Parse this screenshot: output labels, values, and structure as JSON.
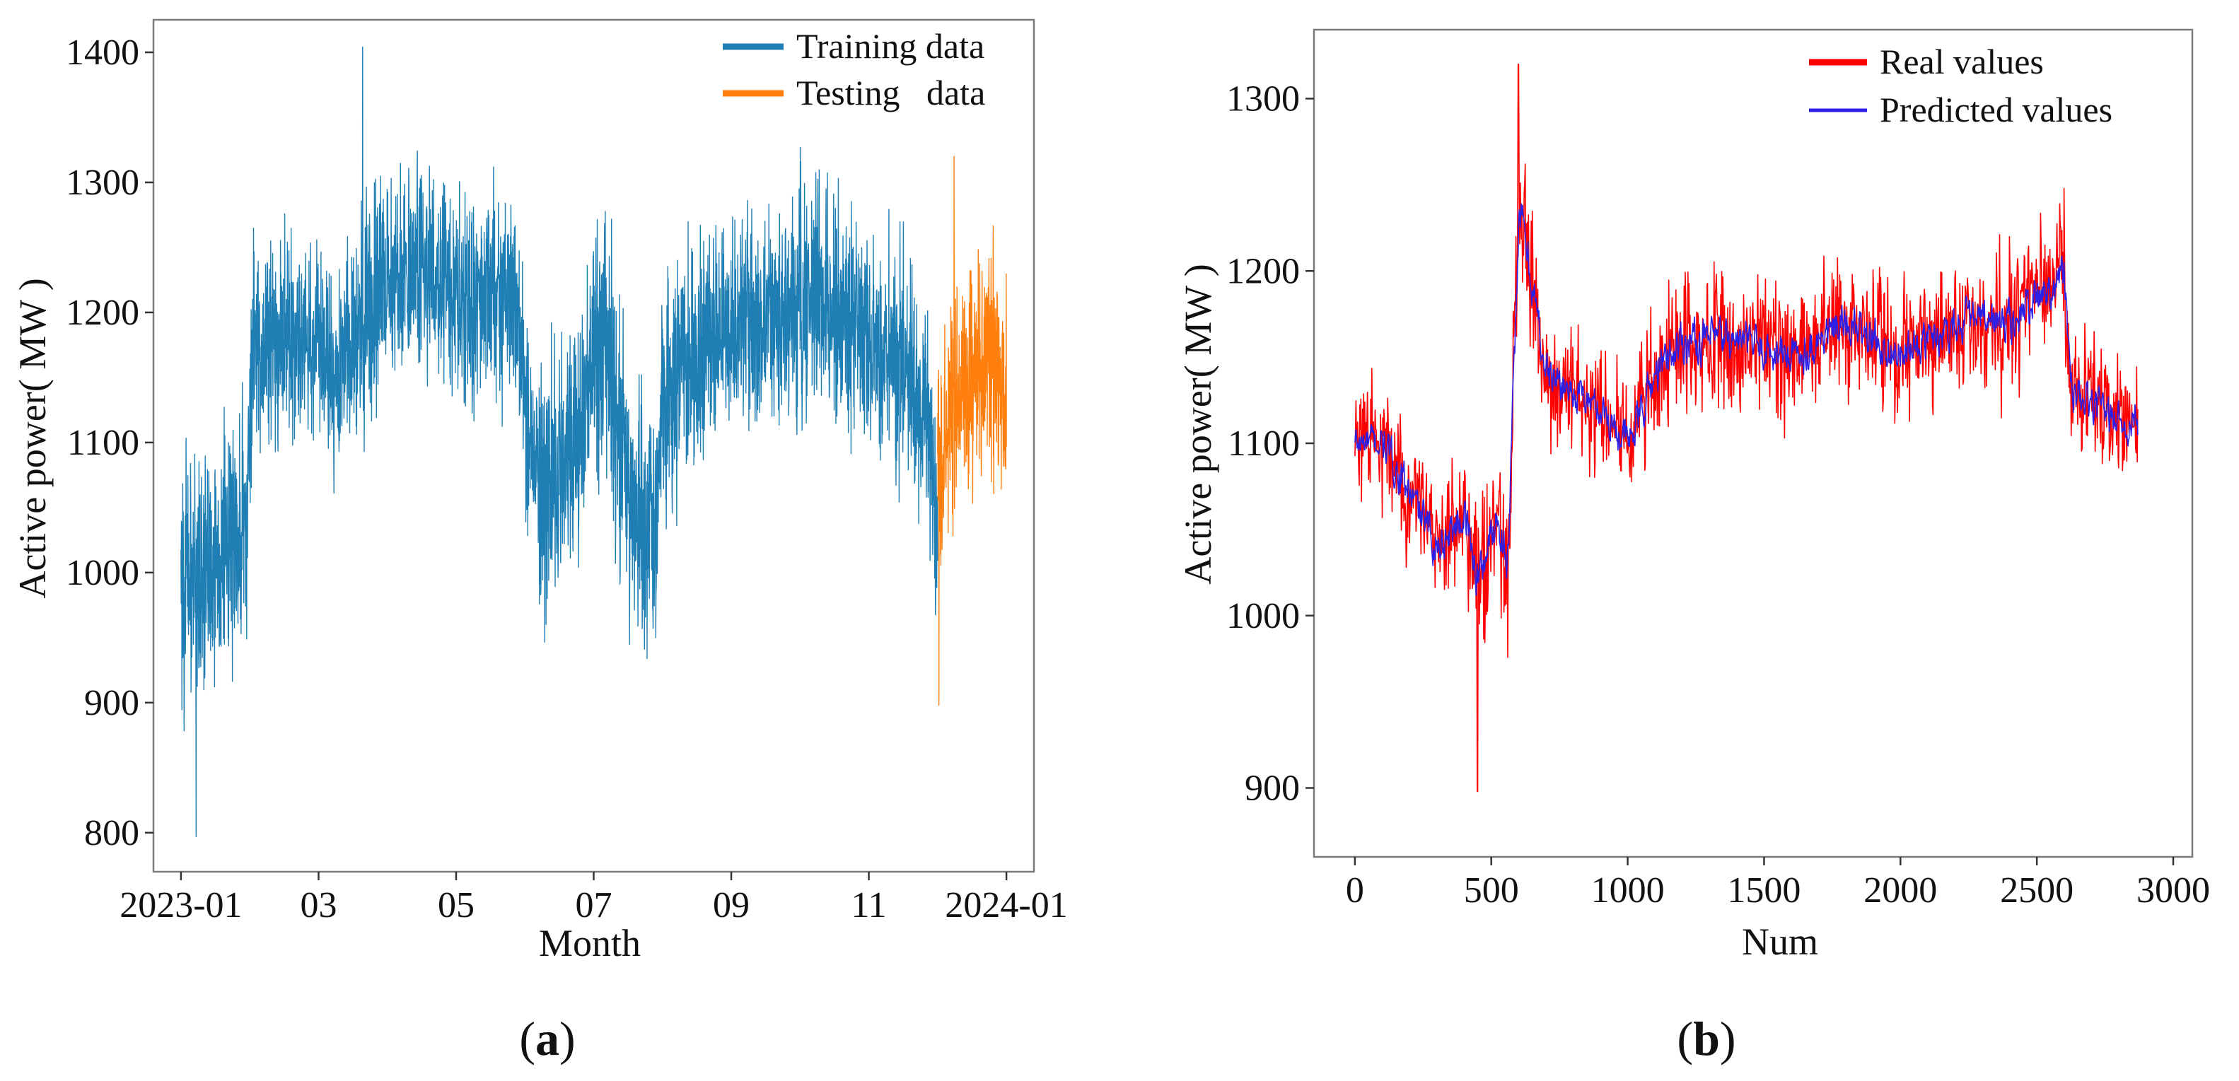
{
  "figure": {
    "panel_labels": [
      {
        "open": "(",
        "letter": "a",
        "close": ")"
      },
      {
        "open": "(",
        "letter": "b",
        "close": ")"
      }
    ]
  },
  "chart_data": [
    {
      "id": "a",
      "type": "line",
      "title": "",
      "xlabel": "Month",
      "ylabel": "Active power( MW )",
      "xlim": [
        -0.4,
        12.4
      ],
      "ylim": [
        770,
        1425
      ],
      "xticks": [
        {
          "value": 0,
          "label": "2023-01"
        },
        {
          "value": 2,
          "label": "03"
        },
        {
          "value": 4,
          "label": "05"
        },
        {
          "value": 6,
          "label": "07"
        },
        {
          "value": 8,
          "label": "09"
        },
        {
          "value": 10,
          "label": "11"
        },
        {
          "value": 12,
          "label": "2024-01"
        }
      ],
      "yticks": [
        800,
        900,
        1000,
        1100,
        1200,
        1300,
        1400
      ],
      "legend": {
        "position": "top-right"
      },
      "series": [
        {
          "name": "Training data",
          "color": "#1f7fb4",
          "x_range": [
            0,
            11.0
          ],
          "profile_x": [
            0,
            0.1,
            0.5,
            0.95,
            1.05,
            1.5,
            2.0,
            2.2,
            2.6,
            3.0,
            3.5,
            4.0,
            4.5,
            4.9,
            5.0,
            5.3,
            5.8,
            6.0,
            6.2,
            6.5,
            6.9,
            7.0,
            7.5,
            8.0,
            8.5,
            9.0,
            9.5,
            10.0,
            10.5,
            10.9,
            11.0
          ],
          "profile_mid": [
            1000,
            990,
            1010,
            1040,
            1175,
            1185,
            1180,
            1150,
            1190,
            1230,
            1235,
            1210,
            1215,
            1205,
            1110,
            1060,
            1110,
            1180,
            1175,
            1060,
            1040,
            1130,
            1170,
            1180,
            1190,
            1210,
            1200,
            1175,
            1160,
            1100,
            1030
          ],
          "profile_amp": [
            110,
            110,
            110,
            100,
            90,
            85,
            85,
            90,
            95,
            100,
            95,
            95,
            90,
            90,
            110,
            110,
            110,
            120,
            120,
            110,
            100,
            105,
            100,
            95,
            100,
            105,
            100,
            100,
            100,
            100,
            90
          ],
          "extremes": {
            "min": 797,
            "max": 1404
          }
        },
        {
          "name": "Testing   data",
          "color": "#ff7f0e",
          "x_range": [
            11.0,
            12.0
          ],
          "profile_x": [
            11.0,
            11.2,
            11.4,
            11.6,
            11.8,
            12.0
          ],
          "profile_mid": [
            1080,
            1120,
            1140,
            1160,
            1165,
            1150
          ],
          "profile_amp": [
            90,
            90,
            95,
            95,
            95,
            90
          ],
          "extremes": {
            "min": 898,
            "max": 1320
          }
        }
      ]
    },
    {
      "id": "b",
      "type": "line",
      "title": "",
      "xlabel": "Num",
      "ylabel": "Active power( MW )",
      "xlim": [
        -150,
        3070
      ],
      "ylim": [
        860,
        1340
      ],
      "xticks": [
        {
          "value": 0,
          "label": "0"
        },
        {
          "value": 500,
          "label": "500"
        },
        {
          "value": 1000,
          "label": "1000"
        },
        {
          "value": 1500,
          "label": "1500"
        },
        {
          "value": 2000,
          "label": "2000"
        },
        {
          "value": 2500,
          "label": "2500"
        },
        {
          "value": 3000,
          "label": "3000"
        }
      ],
      "yticks": [
        900,
        1000,
        1100,
        1200,
        1300
      ],
      "legend": {
        "position": "top-right"
      },
      "x_range": [
        0,
        2870
      ],
      "profile_x": [
        0,
        100,
        200,
        300,
        400,
        450,
        520,
        560,
        600,
        650,
        700,
        800,
        900,
        1000,
        1100,
        1200,
        1400,
        1600,
        1800,
        2000,
        2200,
        2400,
        2600,
        2620,
        2700,
        2870
      ],
      "profile_mid": [
        1100,
        1100,
        1070,
        1040,
        1060,
        1020,
        1060,
        1030,
        1240,
        1190,
        1140,
        1130,
        1120,
        1100,
        1140,
        1160,
        1160,
        1150,
        1170,
        1150,
        1170,
        1170,
        1200,
        1130,
        1120,
        1110
      ],
      "profile_amp": [
        40,
        40,
        45,
        45,
        45,
        55,
        50,
        60,
        45,
        50,
        45,
        40,
        40,
        45,
        45,
        50,
        45,
        45,
        45,
        45,
        45,
        50,
        45,
        45,
        45,
        40
      ],
      "extremes": {
        "min": 898,
        "max": 1320
      },
      "series": [
        {
          "name": "Real values",
          "color": "#ff0000"
        },
        {
          "name": "Predicted values",
          "color": "#2b1fe8"
        }
      ]
    }
  ]
}
